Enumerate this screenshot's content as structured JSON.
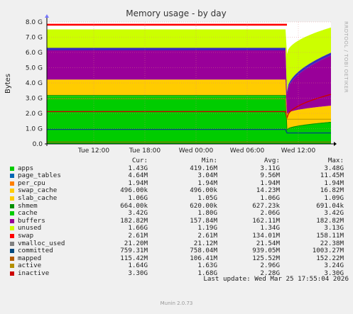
{
  "chart_data": {
    "type": "area",
    "title": "Memory usage - by day",
    "ylabel": "Bytes",
    "side_label": "RRDTOOL / TOBI OETIKER",
    "ylim": [
      0,
      8
    ],
    "y_ticks": [
      "0.0",
      "1.0 G",
      "2.0 G",
      "3.0 G",
      "4.0 G",
      "5.0 G",
      "6.0 G",
      "7.0 G",
      "8.0 G"
    ],
    "x_ticks": [
      "Tue 12:00",
      "Tue 18:00",
      "Wed 00:00",
      "Wed 06:00",
      "Wed 12:00"
    ],
    "columns": [
      "Cur:",
      "Min:",
      "Avg:",
      "Max:"
    ],
    "series": [
      {
        "name": "apps",
        "color": "#00cc00",
        "cur": "1.43G",
        "min": "419.16M",
        "avg": "3.11G",
        "max": "3.48G"
      },
      {
        "name": "page_tables",
        "color": "#0066b3",
        "cur": "4.64M",
        "min": "3.04M",
        "avg": "9.56M",
        "max": "11.45M"
      },
      {
        "name": "per_cpu",
        "color": "#ff8000",
        "cur": "1.94M",
        "min": "1.94M",
        "avg": "1.94M",
        "max": "1.94M"
      },
      {
        "name": "swap_cache",
        "color": "#ffcc00",
        "cur": "496.00k",
        "min": "496.00k",
        "avg": "14.23M",
        "max": "16.82M"
      },
      {
        "name": "slab_cache",
        "color": "#ffcc00",
        "cur": "1.06G",
        "min": "1.05G",
        "avg": "1.06G",
        "max": "1.09G"
      },
      {
        "name": "shmem",
        "color": "#008f00",
        "cur": "664.00k",
        "min": "620.00k",
        "avg": "627.23k",
        "max": "691.04k"
      },
      {
        "name": "cache",
        "color": "#00cc00",
        "cur": "3.42G",
        "min": "1.80G",
        "avg": "2.06G",
        "max": "3.42G"
      },
      {
        "name": "buffers",
        "color": "#990099",
        "cur": "182.82M",
        "min": "157.84M",
        "avg": "162.11M",
        "max": "182.82M"
      },
      {
        "name": "unused",
        "color": "#ccff00",
        "cur": "1.66G",
        "min": "1.19G",
        "avg": "1.34G",
        "max": "3.13G"
      },
      {
        "name": "swap",
        "color": "#ff0000",
        "cur": "2.61M",
        "min": "2.61M",
        "avg": "134.01M",
        "max": "158.11M"
      },
      {
        "name": "vmalloc_used",
        "color": "#808080",
        "cur": "21.20M",
        "min": "21.12M",
        "avg": "21.54M",
        "max": "22.38M"
      },
      {
        "name": "committed",
        "color": "#00487d",
        "cur": "759.31M",
        "min": "758.04M",
        "avg": "939.05M",
        "max": "1003.27M"
      },
      {
        "name": "mapped",
        "color": "#b35a00",
        "cur": "115.42M",
        "min": "106.41M",
        "avg": "125.52M",
        "max": "152.22M"
      },
      {
        "name": "active",
        "color": "#b38f00",
        "cur": "1.64G",
        "min": "1.63G",
        "avg": "2.96G",
        "max": "3.24G"
      },
      {
        "name": "inactive",
        "color": "#cc0000",
        "cur": "3.30G",
        "min": "1.68G",
        "avg": "2.28G",
        "max": "3.30G"
      }
    ],
    "grid": true
  },
  "footer": {
    "last_update": "Last update: Wed Mar 25 17:55:04 2026",
    "version": "Munin 2.0.73"
  }
}
